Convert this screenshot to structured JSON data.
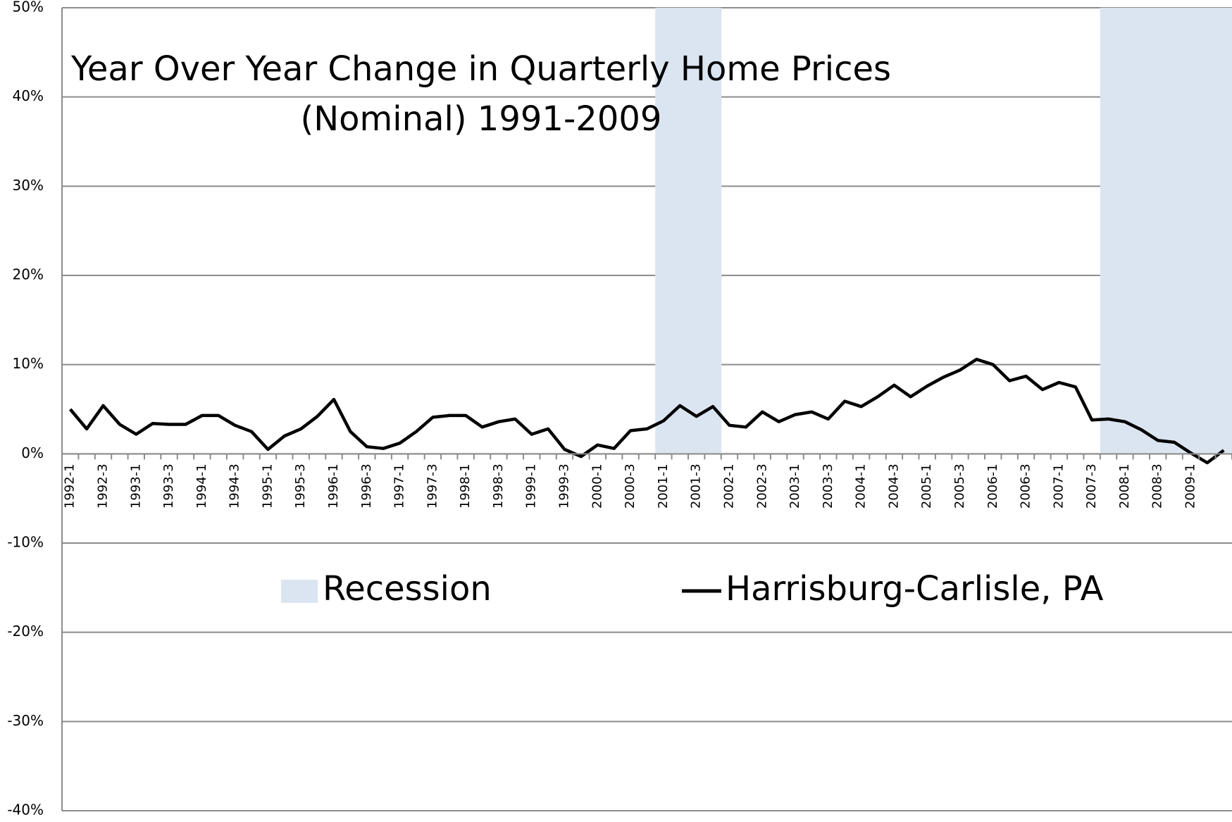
{
  "chart_data": {
    "type": "line",
    "title": [
      "Year Over Year Change in Quarterly Home Prices",
      "(Nominal) 1991-2009"
    ],
    "categories": [
      "1992-1",
      null,
      "1992-3",
      null,
      "1993-1",
      null,
      "1993-3",
      null,
      "1994-1",
      null,
      "1994-3",
      null,
      "1995-1",
      null,
      "1995-3",
      null,
      "1996-1",
      null,
      "1996-3",
      null,
      "1997-1",
      null,
      "1997-3",
      null,
      "1998-1",
      null,
      "1998-3",
      null,
      "1999-1",
      null,
      "1999-3",
      null,
      "2000-1",
      null,
      "2000-3",
      null,
      "2001-1",
      null,
      "2001-3",
      null,
      "2002-1",
      null,
      "2002-3",
      null,
      "2003-1",
      null,
      "2003-3",
      null,
      "2004-1",
      null,
      "2004-3",
      null,
      "2005-1",
      null,
      "2005-3",
      null,
      "2006-1",
      null,
      "2006-3",
      null,
      "2007-1",
      null,
      "2007-3",
      null,
      "2008-1",
      null,
      "2008-3",
      null,
      "2009-1",
      null,
      null
    ],
    "series": [
      {
        "name": "Recession",
        "type": "bar",
        "color": "#dbe5f1",
        "values": [
          null,
          null,
          null,
          null,
          null,
          null,
          null,
          null,
          null,
          null,
          null,
          null,
          null,
          null,
          null,
          null,
          null,
          null,
          null,
          null,
          null,
          null,
          null,
          null,
          null,
          null,
          null,
          null,
          null,
          null,
          null,
          null,
          null,
          null,
          null,
          null,
          50,
          50,
          50,
          50,
          null,
          null,
          null,
          null,
          null,
          null,
          null,
          null,
          null,
          null,
          null,
          null,
          null,
          null,
          null,
          null,
          null,
          null,
          null,
          null,
          null,
          null,
          null,
          50,
          50,
          50,
          50,
          50,
          50,
          50,
          50
        ]
      },
      {
        "name": "Harrisburg-Carlisle, PA",
        "type": "line",
        "color": "#000000",
        "values": [
          5.0,
          2.8,
          5.4,
          3.3,
          2.2,
          3.4,
          3.3,
          3.3,
          4.3,
          4.3,
          3.2,
          2.5,
          0.5,
          2.0,
          2.8,
          4.2,
          6.1,
          2.5,
          0.8,
          0.6,
          1.2,
          2.5,
          4.1,
          4.3,
          4.3,
          3.0,
          3.6,
          3.9,
          2.2,
          2.8,
          0.5,
          -0.3,
          1.0,
          0.6,
          2.6,
          2.8,
          3.7,
          5.4,
          4.2,
          5.3,
          3.2,
          3.0,
          4.7,
          3.6,
          4.4,
          4.7,
          3.9,
          5.9,
          5.3,
          6.4,
          7.7,
          6.4,
          7.6,
          8.6,
          9.4,
          10.6,
          10.0,
          8.2,
          8.7,
          7.2,
          8.0,
          7.5,
          3.8,
          3.9,
          3.6,
          2.7,
          1.5,
          1.3,
          0.1,
          -1.0,
          0.4
        ]
      }
    ],
    "ylim": [
      -40,
      50
    ],
    "yticks": [
      {
        "value": -40,
        "label": "-40%"
      },
      {
        "value": -30,
        "label": "-30%"
      },
      {
        "value": -20,
        "label": "-20%"
      },
      {
        "value": -10,
        "label": "-10%"
      },
      {
        "value": 0,
        "label": "0%"
      },
      {
        "value": 10,
        "label": "10%"
      },
      {
        "value": 20,
        "label": "20%"
      },
      {
        "value": 30,
        "label": "30%"
      },
      {
        "value": 40,
        "label": "40%"
      },
      {
        "value": 50,
        "label": "50%"
      }
    ],
    "grid": true
  }
}
